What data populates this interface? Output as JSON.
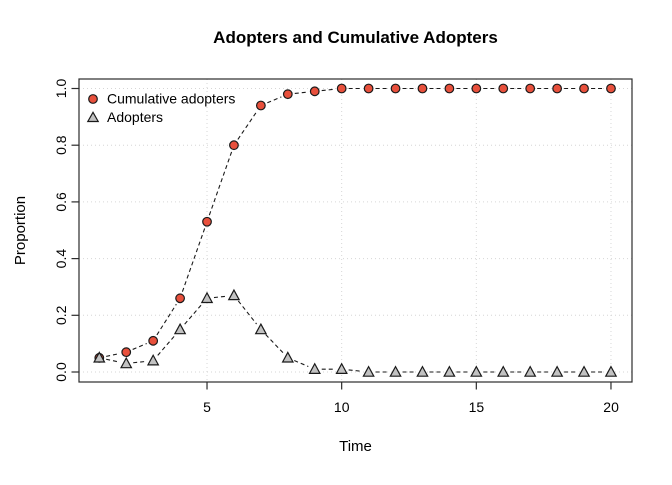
{
  "chart_data": {
    "type": "line",
    "title": "Adopters and Cumulative Adopters",
    "xlabel": "Time",
    "ylabel": "Proportion",
    "xlim": [
      1,
      20
    ],
    "ylim": [
      0.0,
      1.0
    ],
    "xticks": [
      5,
      10,
      15,
      20
    ],
    "xtick_labels": [
      "5",
      "10",
      "15",
      "20"
    ],
    "yticks": [
      0.0,
      0.2,
      0.4,
      0.6,
      0.8,
      1.0
    ],
    "ytick_labels": [
      "0.0",
      "0.2",
      "0.4",
      "0.6",
      "0.8",
      "1.0"
    ],
    "grid": true,
    "grid_style": "dotted",
    "line_style": "dashed",
    "legend_position": "top-left",
    "x": [
      1,
      2,
      3,
      4,
      5,
      6,
      7,
      8,
      9,
      10,
      11,
      12,
      13,
      14,
      15,
      16,
      17,
      18,
      19,
      20
    ],
    "series": [
      {
        "name": "Cumulative adopters",
        "marker": "circle",
        "marker_color": "#E8503C",
        "values": [
          0.05,
          0.07,
          0.11,
          0.26,
          0.53,
          0.8,
          0.94,
          0.98,
          0.99,
          1.0,
          1.0,
          1.0,
          1.0,
          1.0,
          1.0,
          1.0,
          1.0,
          1.0,
          1.0,
          1.0
        ]
      },
      {
        "name": "Adopters",
        "marker": "triangle",
        "marker_color": "#C2C2C2",
        "values": [
          0.05,
          0.03,
          0.04,
          0.15,
          0.26,
          0.27,
          0.15,
          0.05,
          0.01,
          0.01,
          0.0,
          0.0,
          0.0,
          0.0,
          0.0,
          0.0,
          0.0,
          0.0,
          0.0,
          0.0
        ]
      }
    ],
    "colors": {
      "line": "#1A1A1A",
      "marker_edge": "#1A1A1A",
      "grid": "#D6D6D6",
      "axis": "#2B2B2B",
      "background": "#FFFFFF"
    }
  }
}
